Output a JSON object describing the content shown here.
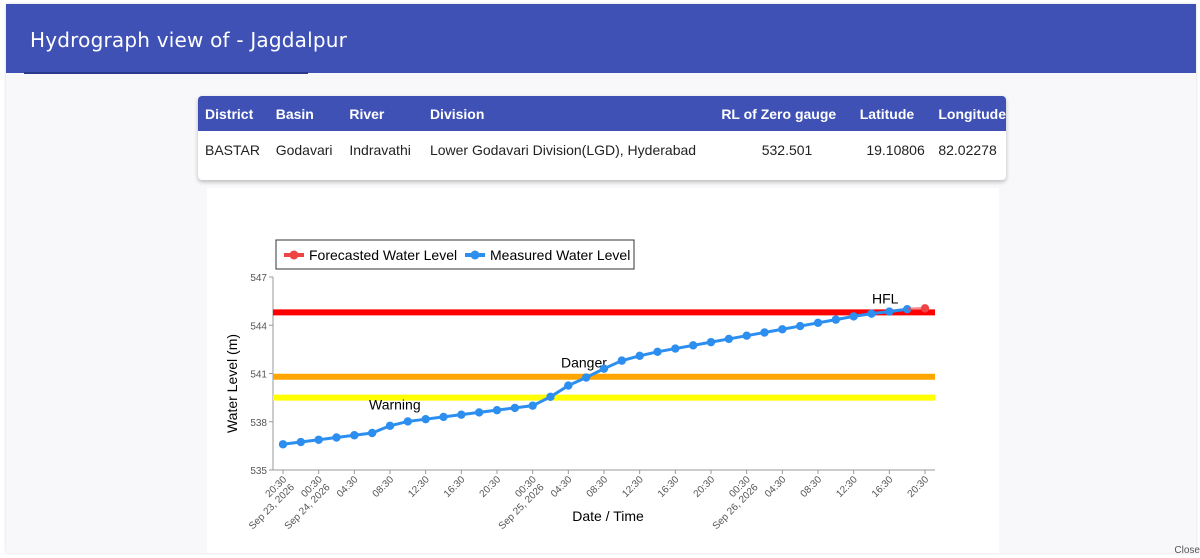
{
  "dialog": {
    "title": "Hydrograph view of - Jagdalpur"
  },
  "station_table": {
    "headers": [
      "District",
      "Basin",
      "River",
      "Division",
      "RL of Zero gauge",
      "Latitude",
      "Longitude"
    ],
    "row": [
      "BASTAR",
      "Godavari",
      "Indravathi",
      "Lower Godavari Division(LGD), Hyderabad",
      "532.501",
      "19.10806",
      "82.02278"
    ]
  },
  "footer": {
    "close_label": "Close"
  },
  "chart_data": {
    "type": "line",
    "xlabel": "Date / Time",
    "ylabel": "Water Level (m)",
    "ylim": [
      535,
      547
    ],
    "yticks": [
      535,
      538,
      541,
      544,
      547
    ],
    "xticks": [
      "20:30 Sep 23, 2026",
      "00:30 Sep 24, 2026",
      "04:30",
      "08:30",
      "12:30",
      "16:30",
      "20:30",
      "00:30 Sep 25, 2026",
      "04:30",
      "08:30",
      "12:30",
      "16:30",
      "20:30",
      "00:30 Sep 26, 2026",
      "04:30",
      "08:30",
      "12:30",
      "16:30",
      "20:30"
    ],
    "x_start": "2026-09-23 20:30",
    "x_end": "2026-09-26 20:30",
    "legend": {
      "position": "top-left",
      "entries": [
        "Forecasted Water Level",
        "Measured Water Level"
      ]
    },
    "grid": false,
    "series": [
      {
        "name": "Measured Water Level",
        "color": "#2c8ff0",
        "points": [
          [
            "2026-09-23 20:30",
            536.6
          ],
          [
            "2026-09-23 22:30",
            536.74
          ],
          [
            "2026-09-24 00:30",
            536.88
          ],
          [
            "2026-09-24 02:30",
            537.02
          ],
          [
            "2026-09-24 04:30",
            537.16
          ],
          [
            "2026-09-24 06:30",
            537.3
          ],
          [
            "2026-09-24 08:30",
            537.75
          ],
          [
            "2026-09-24 10:30",
            538.02
          ],
          [
            "2026-09-24 12:30",
            538.16
          ],
          [
            "2026-09-24 14:30",
            538.3
          ],
          [
            "2026-09-24 16:30",
            538.44
          ],
          [
            "2026-09-24 18:30",
            538.58
          ],
          [
            "2026-09-24 20:30",
            538.72
          ],
          [
            "2026-09-24 22:30",
            538.86
          ],
          [
            "2026-09-25 00:30",
            539.0
          ],
          [
            "2026-09-25 02:30",
            539.55
          ],
          [
            "2026-09-25 04:30",
            540.25
          ],
          [
            "2026-09-25 06:30",
            540.75
          ],
          [
            "2026-09-25 08:30",
            541.3
          ],
          [
            "2026-09-25 10:30",
            541.8
          ],
          [
            "2026-09-25 12:30",
            542.1
          ],
          [
            "2026-09-25 14:30",
            542.35
          ],
          [
            "2026-09-25 16:30",
            542.55
          ],
          [
            "2026-09-25 18:30",
            542.75
          ],
          [
            "2026-09-25 20:30",
            542.95
          ],
          [
            "2026-09-25 22:30",
            543.15
          ],
          [
            "2026-09-26 00:30",
            543.35
          ],
          [
            "2026-09-26 02:30",
            543.55
          ],
          [
            "2026-09-26 04:30",
            543.75
          ],
          [
            "2026-09-26 06:30",
            543.95
          ],
          [
            "2026-09-26 08:30",
            544.15
          ],
          [
            "2026-09-26 10:30",
            544.35
          ],
          [
            "2026-09-26 12:30",
            544.55
          ],
          [
            "2026-09-26 14:30",
            544.72
          ],
          [
            "2026-09-26 16:30",
            544.85
          ],
          [
            "2026-09-26 18:30",
            545.0
          ]
        ]
      },
      {
        "name": "Forecasted Water Level",
        "color": "#ef4444",
        "points": [
          [
            "2026-09-26 18:30",
            545.0
          ],
          [
            "2026-09-26 20:30",
            545.05
          ]
        ]
      }
    ],
    "reference_lines": [
      {
        "label": "HFL",
        "value": 544.8,
        "color": "#ff0000"
      },
      {
        "label": "Danger",
        "value": 540.8,
        "color": "#ffa500"
      },
      {
        "label": "Warning",
        "value": 539.5,
        "color": "#ffff00"
      }
    ]
  }
}
